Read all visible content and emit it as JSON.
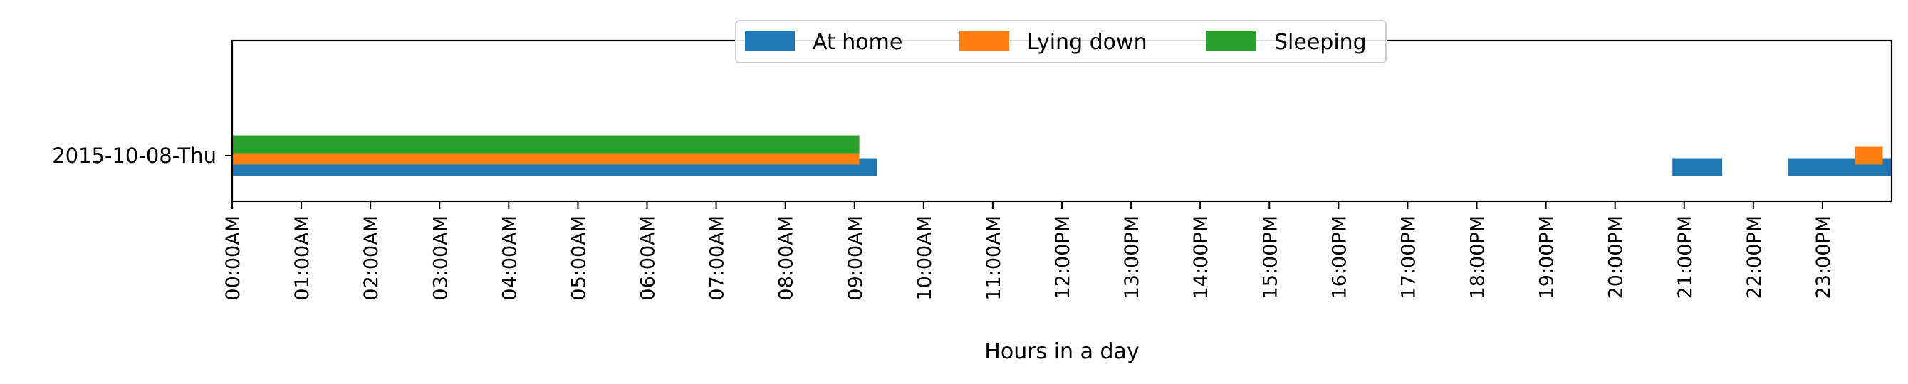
{
  "chart_data": {
    "type": "bar",
    "orientation": "horizontal-timeline",
    "title": "",
    "xlabel": "Hours in a day",
    "ylabel": "",
    "xlim": [
      0,
      24
    ],
    "x_unit": "hours",
    "grid": false,
    "legend_placement": "top-center",
    "categories": [
      "2015-10-08-Thu"
    ],
    "tick_labels": [
      "00:00AM",
      "01:00AM",
      "02:00AM",
      "03:00AM",
      "04:00AM",
      "05:00AM",
      "06:00AM",
      "07:00AM",
      "08:00AM",
      "09:00AM",
      "10:00AM",
      "11:00AM",
      "12:00PM",
      "13:00PM",
      "14:00PM",
      "15:00PM",
      "16:00PM",
      "17:00PM",
      "18:00PM",
      "19:00PM",
      "20:00PM",
      "21:00PM",
      "22:00PM",
      "23:00PM"
    ],
    "series": [
      {
        "name": "At home",
        "color": "#1f77b4",
        "intervals": [
          [
            0.0,
            9.33
          ],
          [
            20.83,
            21.55
          ],
          [
            22.5,
            24.0
          ]
        ]
      },
      {
        "name": "Lying down",
        "color": "#ff7f0e",
        "intervals": [
          [
            0.0,
            9.07
          ],
          [
            23.47,
            23.87
          ]
        ]
      },
      {
        "name": "Sleeping",
        "color": "#2ca02c",
        "intervals": [
          [
            0.0,
            9.07
          ]
        ]
      }
    ]
  }
}
